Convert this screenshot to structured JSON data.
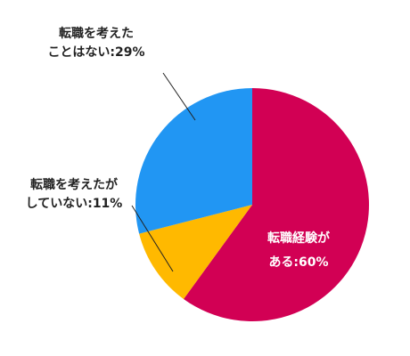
{
  "chart_data": {
    "type": "pie",
    "labels": [
      [
        "転職経験が",
        "ある:60%"
      ],
      [
        "転職を考えたが",
        "していない:11%"
      ],
      [
        "転職を考えた",
        "ことはない:29%"
      ]
    ],
    "values": [
      60,
      11,
      29
    ],
    "colors": [
      "#d20054",
      "#ffb900",
      "#2196f3"
    ]
  }
}
